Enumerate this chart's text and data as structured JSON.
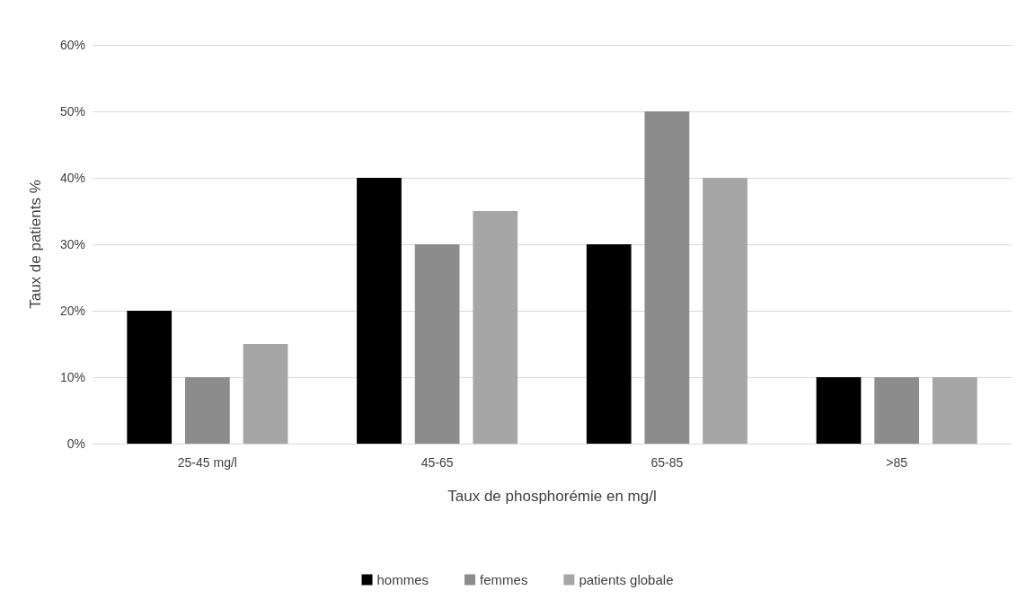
{
  "chart_data": {
    "type": "bar",
    "xlabel": "Taux de phosphorémie en mg/l",
    "ylabel": "Taux de patients %",
    "categories": [
      "25-45 mg/l",
      "45-65",
      "65-85",
      ">85"
    ],
    "series": [
      {
        "name": "hommes",
        "color": "#000000",
        "values": [
          20,
          40,
          30,
          10
        ]
      },
      {
        "name": "femmes",
        "color": "#8c8c8c",
        "values": [
          10,
          30,
          50,
          10
        ]
      },
      {
        "name": "patients globale",
        "color": "#a6a6a6",
        "values": [
          15,
          35,
          40,
          10
        ]
      }
    ],
    "ylim": [
      0,
      60
    ],
    "yticks": [
      {
        "value": 0,
        "label": "0%"
      },
      {
        "value": 10,
        "label": "10%"
      },
      {
        "value": 20,
        "label": "20%"
      },
      {
        "value": 30,
        "label": "30%"
      },
      {
        "value": 40,
        "label": "40%"
      },
      {
        "value": 50,
        "label": "50%"
      },
      {
        "value": 60,
        "label": "60%"
      }
    ],
    "grid": "y",
    "legend": "bottom"
  }
}
